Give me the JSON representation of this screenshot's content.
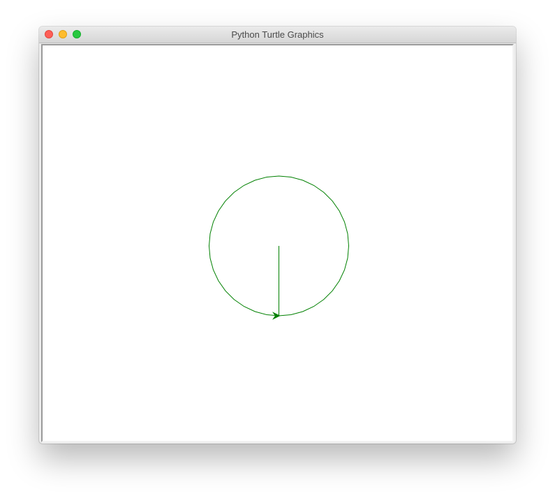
{
  "window": {
    "title": "Python Turtle Graphics"
  },
  "icons": {
    "close": "close-icon",
    "minimize": "minimize-icon",
    "zoom": "zoom-icon",
    "turtle": "turtle-arrow-icon"
  },
  "colors": {
    "pen": "#008000",
    "canvas_background": "#ffffff",
    "close_button": "#fe5f57",
    "minimize_button": "#febc2e",
    "zoom_button": "#28c840"
  },
  "drawing": {
    "shape": "circle",
    "radius": 100,
    "segments": 36
  }
}
